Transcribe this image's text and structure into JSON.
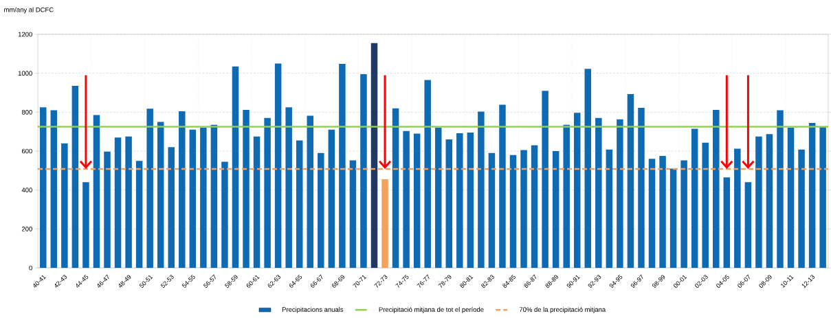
{
  "chart_data": {
    "type": "bar",
    "ylabel": "mm/any al DCFC",
    "categories": [
      "40-41",
      null,
      "42-43",
      null,
      "44-45",
      null,
      "46-47",
      null,
      "48-49",
      null,
      "50-51",
      null,
      "52-53",
      null,
      "54-55",
      null,
      "56-57",
      null,
      "58-59",
      null,
      "60-61",
      null,
      "62-63",
      null,
      "64-65",
      null,
      "66-67",
      null,
      "68-69",
      null,
      "70-71",
      null,
      "72-73",
      null,
      "74-75",
      null,
      "76-77",
      null,
      "78-79",
      null,
      "80-81",
      null,
      "82-83",
      null,
      "84-85",
      null,
      "86-87",
      null,
      "88-89",
      null,
      "90-91",
      null,
      "92-93",
      null,
      "94-95",
      null,
      "96-97",
      null,
      "98-99",
      null,
      "00-01",
      null,
      "02-03",
      null,
      "04-05",
      null,
      "06-07",
      null,
      "08-09",
      null,
      "10-11",
      null,
      "12-13",
      null
    ],
    "series": [
      {
        "name": "Precipitacions anuals",
        "color": "#0f6ab4",
        "colors": [
          "#0f6ab4",
          "#0f6ab4",
          "#0f6ab4",
          "#0f6ab4",
          "#0f6ab4",
          "#0f6ab4",
          "#0f6ab4",
          "#0f6ab4",
          "#0f6ab4",
          "#0f6ab4",
          "#0f6ab4",
          "#0f6ab4",
          "#0f6ab4",
          "#0f6ab4",
          "#0f6ab4",
          "#0f6ab4",
          "#0f6ab4",
          "#0f6ab4",
          "#0f6ab4",
          "#0f6ab4",
          "#0f6ab4",
          "#0f6ab4",
          "#0f6ab4",
          "#0f6ab4",
          "#0f6ab4",
          "#0f6ab4",
          "#0f6ab4",
          "#0f6ab4",
          "#0f6ab4",
          "#0f6ab4",
          "#0f6ab4",
          "#1f3864",
          "#f4a15a",
          "#0f6ab4",
          "#0f6ab4",
          "#0f6ab4",
          "#0f6ab4",
          "#0f6ab4",
          "#0f6ab4",
          "#0f6ab4",
          "#0f6ab4",
          "#0f6ab4",
          "#0f6ab4",
          "#0f6ab4",
          "#0f6ab4",
          "#0f6ab4",
          "#0f6ab4",
          "#0f6ab4",
          "#0f6ab4",
          "#0f6ab4",
          "#0f6ab4",
          "#0f6ab4",
          "#0f6ab4",
          "#0f6ab4",
          "#0f6ab4",
          "#0f6ab4",
          "#0f6ab4",
          "#0f6ab4",
          "#0f6ab4",
          "#0f6ab4",
          "#0f6ab4",
          "#0f6ab4",
          "#0f6ab4",
          "#0f6ab4",
          "#0f6ab4",
          "#0f6ab4",
          "#0f6ab4",
          "#0f6ab4",
          "#0f6ab4",
          "#0f6ab4",
          "#0f6ab4",
          "#0f6ab4",
          "#0f6ab4",
          "#0f6ab4"
        ],
        "values": [
          825,
          810,
          640,
          935,
          440,
          785,
          597,
          670,
          675,
          550,
          818,
          750,
          620,
          805,
          710,
          720,
          735,
          545,
          1035,
          812,
          675,
          770,
          1050,
          825,
          655,
          782,
          590,
          710,
          1048,
          552,
          995,
          1155,
          455,
          820,
          703,
          690,
          965,
          720,
          660,
          692,
          695,
          803,
          590,
          838,
          580,
          605,
          630,
          910,
          600,
          735,
          797,
          1023,
          770,
          608,
          763,
          893,
          822,
          560,
          575,
          510,
          552,
          715,
          643,
          812,
          465,
          612,
          440,
          675,
          687,
          810,
          720,
          608,
          745,
          727
        ]
      }
    ],
    "ylim": [
      0,
      1200
    ],
    "yticks": [
      0,
      200,
      400,
      600,
      800,
      1000,
      1200
    ],
    "grid": true,
    "legend": "bottom",
    "ref_lines": [
      {
        "axis": "y",
        "value": 725,
        "label": "Precipitació mitjana de tot el període",
        "color": "#92d050",
        "line_style": "solid"
      },
      {
        "axis": "y",
        "value": 508,
        "label": "70% de la precipitació mitjana",
        "color": "#f0a060",
        "line_style": "dashed"
      }
    ]
  }
}
